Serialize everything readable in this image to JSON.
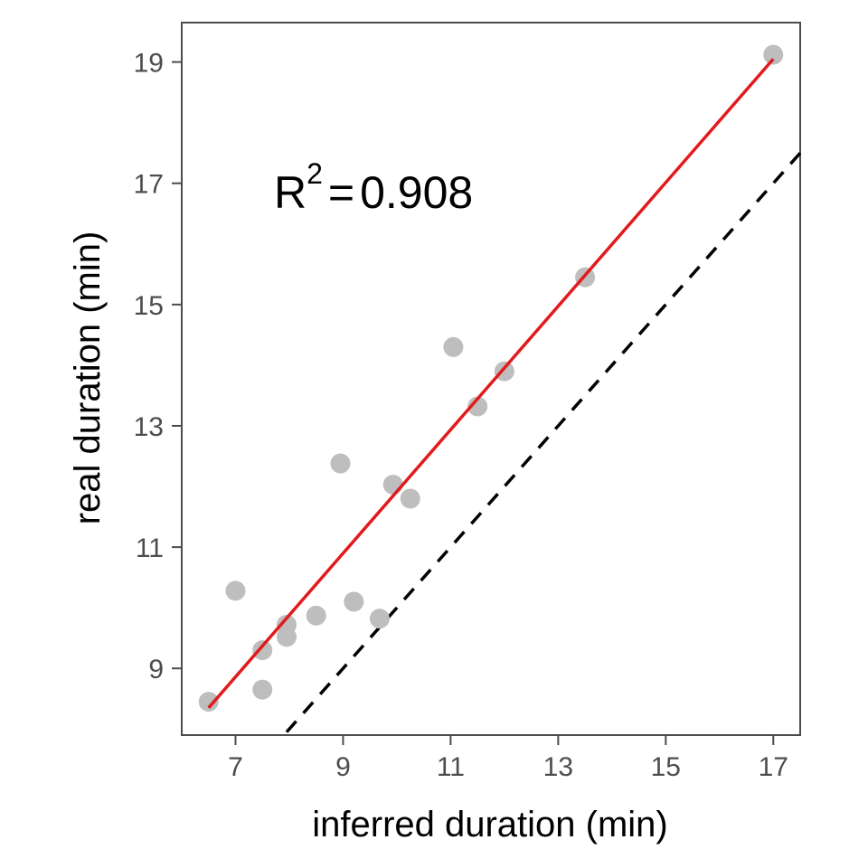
{
  "chart_data": {
    "type": "scatter",
    "xlabel": "inferred duration (min)",
    "ylabel": "real duration (min)",
    "xlim": [
      6.0,
      17.5
    ],
    "ylim": [
      7.9,
      19.65
    ],
    "x_ticks": [
      7,
      9,
      11,
      13,
      15,
      17
    ],
    "y_ticks": [
      9,
      11,
      13,
      15,
      17,
      19
    ],
    "grid": false,
    "annotation": {
      "r_symbol": "R",
      "superscript": "2",
      "equals": "=",
      "value": "0.908"
    },
    "points": [
      {
        "x": 6.5,
        "y": 8.45
      },
      {
        "x": 7.0,
        "y": 10.28
      },
      {
        "x": 7.5,
        "y": 9.3
      },
      {
        "x": 7.5,
        "y": 8.65
      },
      {
        "x": 7.95,
        "y": 9.72
      },
      {
        "x": 7.95,
        "y": 9.52
      },
      {
        "x": 8.5,
        "y": 9.87
      },
      {
        "x": 8.95,
        "y": 12.38
      },
      {
        "x": 9.2,
        "y": 10.1
      },
      {
        "x": 9.68,
        "y": 9.82
      },
      {
        "x": 9.93,
        "y": 12.03
      },
      {
        "x": 10.25,
        "y": 11.8
      },
      {
        "x": 11.05,
        "y": 14.3
      },
      {
        "x": 11.5,
        "y": 13.32
      },
      {
        "x": 12.0,
        "y": 13.9
      },
      {
        "x": 13.5,
        "y": 15.45
      },
      {
        "x": 17.0,
        "y": 19.12
      }
    ],
    "fit_line": {
      "x": [
        6.5,
        17.0
      ],
      "y": [
        8.35,
        19.05
      ]
    },
    "identity_line": {
      "x": [
        7.95,
        17.5
      ],
      "y": [
        7.95,
        17.5
      ]
    },
    "colors": {
      "points": "#bebebe",
      "fit_line": "#e31a1c",
      "identity_line": "#000000",
      "panel_border": "#4d4d4d",
      "tick": "#4d4d4d"
    }
  }
}
